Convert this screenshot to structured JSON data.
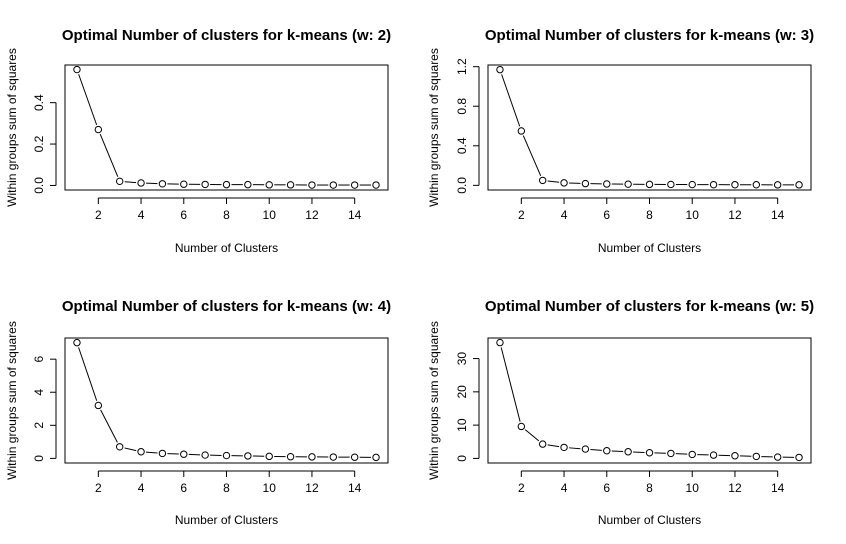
{
  "chart_data": [
    {
      "type": "line",
      "title": "Optimal Number of clusters for k-means (w: 2)",
      "xlabel": "Number of Clusters",
      "ylabel": "Within groups sum of squares",
      "x": [
        1,
        2,
        3,
        4,
        5,
        6,
        7,
        8,
        9,
        10,
        11,
        12,
        13,
        14,
        15
      ],
      "values": [
        0.56,
        0.27,
        0.02,
        0.012,
        0.008,
        0.006,
        0.005,
        0.004,
        0.004,
        0.003,
        0.003,
        0.002,
        0.002,
        0.002,
        0.002
      ],
      "xlim": [
        0.44,
        15.56
      ],
      "ylim": [
        -0.022,
        0.582
      ],
      "xticks": [
        2,
        4,
        6,
        8,
        10,
        12,
        14
      ],
      "yticks": [
        0.0,
        0.2,
        0.4
      ],
      "ytick_labels": [
        "0.0",
        "0.2",
        "0.4"
      ]
    },
    {
      "type": "line",
      "title": "Optimal Number of clusters for k-means (w: 3)",
      "xlabel": "Number of Clusters",
      "ylabel": "Within groups sum of squares",
      "x": [
        1,
        2,
        3,
        4,
        5,
        6,
        7,
        8,
        9,
        10,
        11,
        12,
        13,
        14,
        15
      ],
      "values": [
        1.17,
        0.55,
        0.05,
        0.025,
        0.018,
        0.014,
        0.012,
        0.01,
        0.009,
        0.008,
        0.007,
        0.006,
        0.006,
        0.005,
        0.005
      ],
      "xlim": [
        0.44,
        15.56
      ],
      "ylim": [
        -0.047,
        1.217
      ],
      "xticks": [
        2,
        4,
        6,
        8,
        10,
        12,
        14
      ],
      "yticks": [
        0.0,
        0.4,
        0.8,
        1.2
      ],
      "ytick_labels": [
        "0.0",
        "0.4",
        "0.8",
        "1.2"
      ]
    },
    {
      "type": "line",
      "title": "Optimal Number of clusters for k-means (w: 4)",
      "xlabel": "Number of Clusters",
      "ylabel": "Within groups sum of squares",
      "x": [
        1,
        2,
        3,
        4,
        5,
        6,
        7,
        8,
        9,
        10,
        11,
        12,
        13,
        14,
        15
      ],
      "values": [
        7.0,
        3.2,
        0.7,
        0.4,
        0.3,
        0.25,
        0.2,
        0.17,
        0.15,
        0.12,
        0.1,
        0.09,
        0.08,
        0.07,
        0.06
      ],
      "xlim": [
        0.44,
        15.56
      ],
      "ylim": [
        -0.28,
        7.28
      ],
      "xticks": [
        2,
        4,
        6,
        8,
        10,
        12,
        14
      ],
      "yticks": [
        0,
        2,
        4,
        6
      ],
      "ytick_labels": [
        "0",
        "2",
        "4",
        "6"
      ]
    },
    {
      "type": "line",
      "title": "Optimal Number of clusters for k-means (w: 5)",
      "xlabel": "Number of Clusters",
      "ylabel": "Within groups sum of squares",
      "x": [
        1,
        2,
        3,
        4,
        5,
        6,
        7,
        8,
        9,
        10,
        11,
        12,
        13,
        14,
        15
      ],
      "values": [
        34.8,
        9.6,
        4.3,
        3.3,
        2.8,
        2.3,
        2.0,
        1.7,
        1.5,
        1.2,
        1.0,
        0.8,
        0.6,
        0.4,
        0.3
      ],
      "xlim": [
        0.44,
        15.56
      ],
      "ylim": [
        -1.38,
        36.18
      ],
      "xticks": [
        2,
        4,
        6,
        8,
        10,
        12,
        14
      ],
      "yticks": [
        0,
        10,
        20,
        30
      ],
      "ytick_labels": [
        "0",
        "10",
        "20",
        "30"
      ]
    }
  ]
}
